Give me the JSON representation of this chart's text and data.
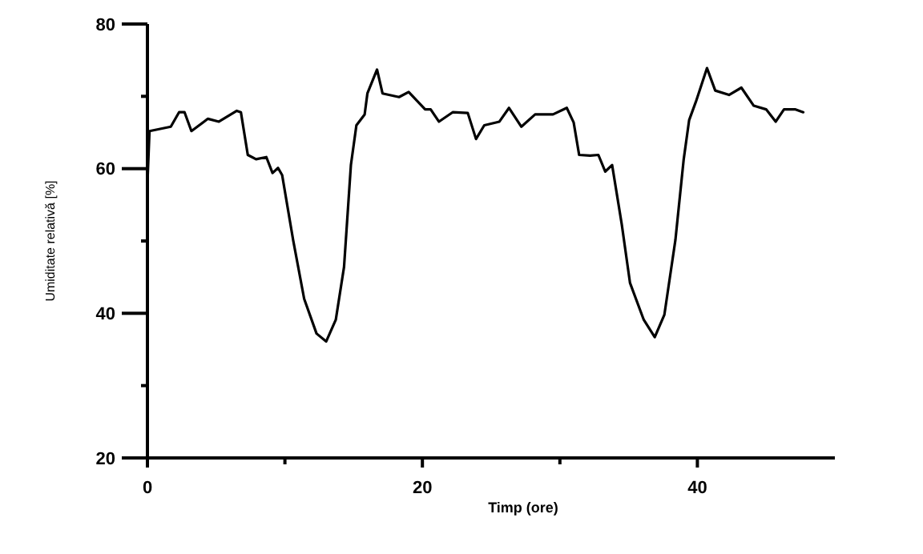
{
  "chart_data": {
    "type": "line",
    "xlabel": "Timp (ore)",
    "ylabel": "Umiditate relativă [%]",
    "xlim": [
      0,
      50
    ],
    "ylim": [
      20,
      80
    ],
    "xticks": [
      0,
      {
        "value": 10,
        "label": null
      },
      20,
      {
        "value": 30,
        "label": null
      },
      40
    ],
    "yticks": [
      20,
      {
        "value": 30,
        "label": null
      },
      40,
      {
        "value": 50,
        "label": null
      },
      60,
      {
        "value": 70,
        "label": null
      },
      80
    ],
    "series": [
      {
        "color": "#000000",
        "x": [
          0,
          0.15,
          1.7,
          2.3,
          2.7,
          3.2,
          4.4,
          5.2,
          6.5,
          6.8,
          7.3,
          7.9,
          8.65,
          9.1,
          9.5,
          9.8,
          10.6,
          11.4,
          12.3,
          13,
          13.7,
          14.3,
          14.8,
          15.2,
          15.8,
          16,
          16.7,
          17.1,
          18.3,
          19,
          20.2,
          20.6,
          21.2,
          22.2,
          23.3,
          23.9,
          24.5,
          25.6,
          26.3,
          27.2,
          28.2,
          29.5,
          30.5,
          31,
          31.4,
          32.2,
          32.8,
          33.3,
          33.8,
          34.5,
          35.1,
          36.1,
          36.9,
          37.6,
          38.4,
          39,
          39.4,
          39.9,
          40.7,
          41.3,
          42.3,
          43.2,
          44.1,
          45,
          45.7,
          46.3,
          47.1,
          47.7
        ],
        "values": [
          58,
          65.2,
          65.8,
          67.8,
          67.8,
          65.2,
          66.9,
          66.5,
          68,
          67.8,
          61.9,
          61.3,
          61.6,
          59.4,
          60.1,
          59.1,
          50.1,
          42,
          37.2,
          36.1,
          39.1,
          46.4,
          60.5,
          66,
          67.5,
          70.4,
          73.7,
          70.4,
          69.9,
          70.6,
          68.2,
          68.2,
          66.5,
          67.8,
          67.7,
          64.1,
          66,
          66.5,
          68.4,
          65.8,
          67.5,
          67.5,
          68.4,
          66.4,
          61.9,
          61.8,
          61.9,
          59.6,
          60.5,
          52.3,
          44.2,
          39.1,
          36.7,
          39.8,
          50.1,
          61.2,
          66.7,
          69.3,
          73.9,
          70.8,
          70.2,
          71.2,
          68.7,
          68.2,
          66.5,
          68.2,
          68.2,
          67.8
        ]
      }
    ]
  }
}
